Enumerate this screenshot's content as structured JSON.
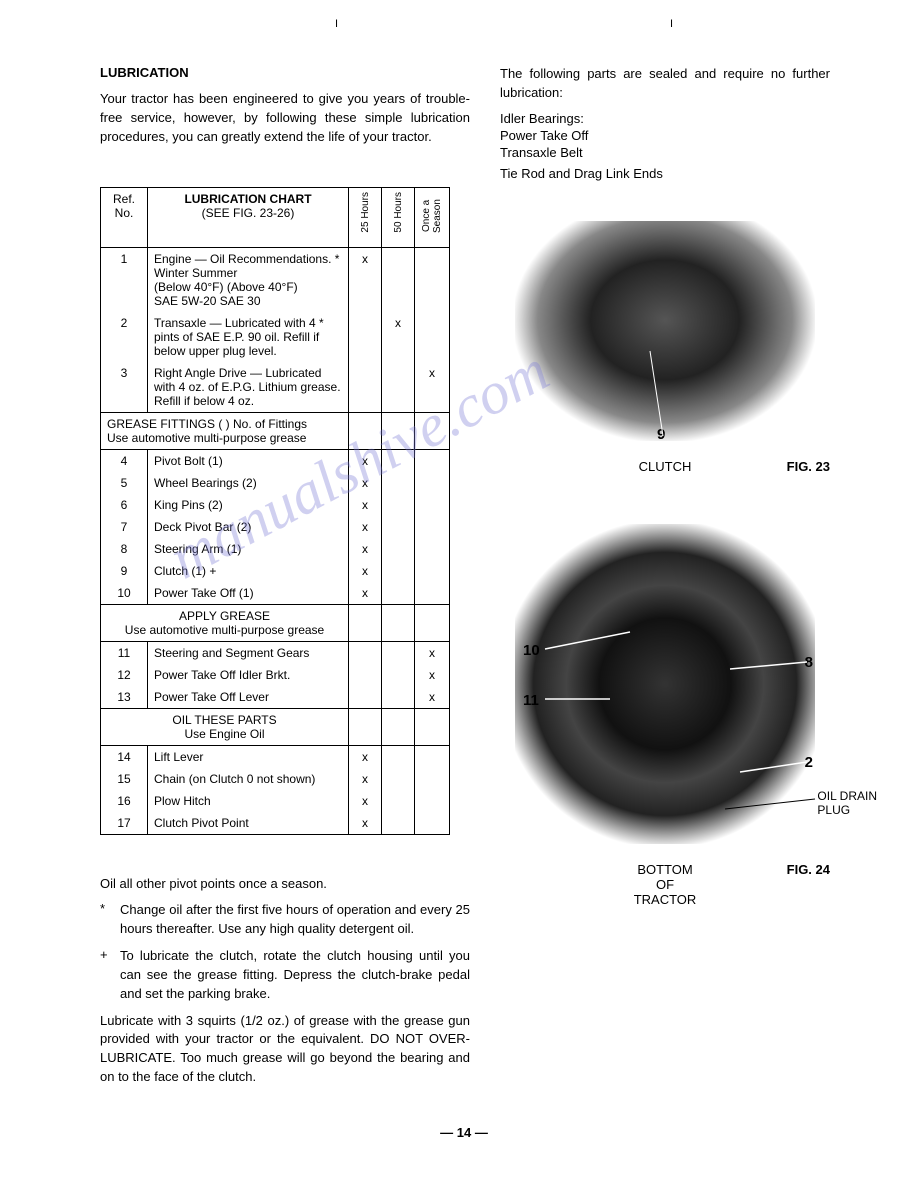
{
  "top_ticks": [
    "I",
    "I"
  ],
  "heading": "LUBRICATION",
  "intro": "Your tractor has been engineered to give you years of trouble-free service, however, by following these simple lubrication procedures, you can greatly extend the life of your tractor.",
  "sealed_intro": "The following parts are sealed and require no further lubrication:",
  "sealed_items": [
    "Idler Bearings:",
    "Power Take Off",
    "Transaxle Belt",
    "Tie Rod and Drag Link Ends"
  ],
  "table": {
    "ref_header": "Ref. No.",
    "title": "LUBRICATION CHART",
    "subtitle": "(SEE FIG. 23-26)",
    "col_headers": [
      "25 Hours",
      "50 Hours",
      "Once a Season"
    ],
    "rows_a": [
      {
        "n": "1",
        "d": "Engine — Oil Recommendations. *\nWinter            Summer\n(Below 40°F)   (Above 40°F)\nSAE 5W-20      SAE 30",
        "c": [
          "x",
          "",
          ""
        ]
      },
      {
        "n": "2",
        "d": "Transaxle — Lubricated with 4 * pints of SAE E.P. 90 oil. Refill if below upper plug level.",
        "c": [
          "",
          "x",
          ""
        ]
      },
      {
        "n": "3",
        "d": "Right Angle Drive — Lubricated with 4 oz. of E.P.G. Lithium grease. Refill if below 4 oz.",
        "c": [
          "",
          "",
          "x"
        ]
      }
    ],
    "section_b_head": "GREASE FITTINGS (   ) No. of Fittings\nUse automotive multi-purpose grease",
    "rows_b": [
      {
        "n": "4",
        "d": "Pivot Bolt (1)",
        "c": [
          "x",
          "",
          ""
        ]
      },
      {
        "n": "5",
        "d": "Wheel Bearings (2)",
        "c": [
          "x",
          "",
          ""
        ]
      },
      {
        "n": "6",
        "d": "King Pins (2)",
        "c": [
          "x",
          "",
          ""
        ]
      },
      {
        "n": "7",
        "d": "Deck Pivot Bar (2)",
        "c": [
          "x",
          "",
          ""
        ]
      },
      {
        "n": "8",
        "d": "Steering Arm (1)",
        "c": [
          "x",
          "",
          ""
        ]
      },
      {
        "n": "9",
        "d": "Clutch (1) +",
        "c": [
          "x",
          "",
          ""
        ]
      },
      {
        "n": "10",
        "d": "Power Take Off (1)",
        "c": [
          "x",
          "",
          ""
        ]
      }
    ],
    "section_c_head": "APPLY GREASE\nUse automotive multi-purpose grease",
    "rows_c": [
      {
        "n": "11",
        "d": "Steering and Segment Gears",
        "c": [
          "",
          "",
          "x"
        ]
      },
      {
        "n": "12",
        "d": "Power Take Off Idler Brkt.",
        "c": [
          "",
          "",
          "x"
        ]
      },
      {
        "n": "13",
        "d": "Power Take Off Lever",
        "c": [
          "",
          "",
          "x"
        ]
      }
    ],
    "section_d_head": "OIL THESE PARTS\nUse Engine Oil",
    "rows_d": [
      {
        "n": "14",
        "d": "Lift Lever",
        "c": [
          "x",
          "",
          ""
        ]
      },
      {
        "n": "15",
        "d": "Chain  (on Clutch 0 not shown)",
        "c": [
          "x",
          "",
          ""
        ]
      },
      {
        "n": "16",
        "d": "Plow Hitch",
        "c": [
          "x",
          "",
          ""
        ]
      },
      {
        "n": "17",
        "d": "Clutch Pivot Point",
        "c": [
          "x",
          "",
          ""
        ]
      }
    ]
  },
  "below": {
    "line1": "Oil all other pivot points once a season.",
    "note_star": "Change oil after the first five hours of operation and every 25 hours thereafter. Use any high quality detergent oil.",
    "note_plus": "To lubricate the clutch, rotate the clutch housing until you can see the grease fitting. Depress the clutch-brake pedal and set the parking brake.",
    "para2": "Lubricate with 3 squirts (1/2 oz.) of grease with the grease gun provided with your tractor or the equivalent. DO NOT OVER-LUBRICATE. Too much grease will go beyond the bearing and on to the face of the clutch."
  },
  "fig23": {
    "callouts": {
      "9": "9"
    },
    "caption": "CLUTCH",
    "label": "FIG. 23"
  },
  "fig24": {
    "callouts": {
      "10": "10",
      "11": "11",
      "8": "8",
      "2": "2",
      "drain": "OIL DRAIN PLUG"
    },
    "caption": "BOTTOM\nOF\nTRACTOR",
    "label": "FIG. 24"
  },
  "watermark": "manualshive.com",
  "page_number": "— 14 —"
}
